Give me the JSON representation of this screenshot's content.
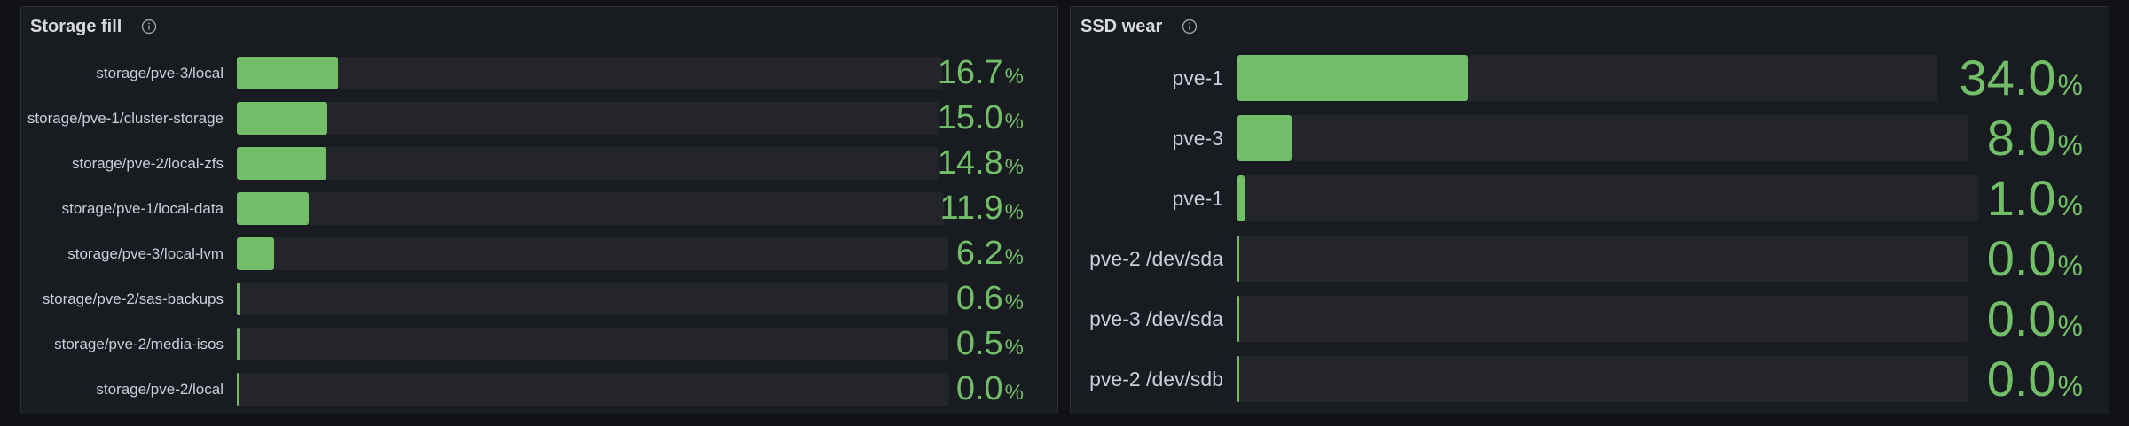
{
  "colors": {
    "accent": "#73bf69",
    "track": "#23252b",
    "panel": "#181b1f",
    "background": "#111217"
  },
  "panels": [
    {
      "title": "Storage fill",
      "icon": "info-icon",
      "rows": [
        {
          "label": "storage/pve-3/local",
          "value": "16.7",
          "unit": "%",
          "fraction": 0.167
        },
        {
          "label": "storage/pve-1/cluster-storage",
          "value": "15.0",
          "unit": "%",
          "fraction": 0.15
        },
        {
          "label": "storage/pve-2/local-zfs",
          "value": "14.8",
          "unit": "%",
          "fraction": 0.148
        },
        {
          "label": "storage/pve-1/local-data",
          "value": "11.9",
          "unit": "%",
          "fraction": 0.119
        },
        {
          "label": "storage/pve-3/local-lvm",
          "value": "6.2",
          "unit": "%",
          "fraction": 0.062
        },
        {
          "label": "storage/pve-2/sas-backups",
          "value": "0.6",
          "unit": "%",
          "fraction": 0.006
        },
        {
          "label": "storage/pve-2/media-isos",
          "value": "0.5",
          "unit": "%",
          "fraction": 0.005
        },
        {
          "label": "storage/pve-2/local",
          "value": "0.0",
          "unit": "%",
          "fraction": 0.0
        }
      ]
    },
    {
      "title": "SSD wear",
      "icon": "info-icon",
      "rows": [
        {
          "label": "pve-1",
          "value": "34.0",
          "unit": "%",
          "fraction": 0.34
        },
        {
          "label": "pve-3",
          "value": "8.0",
          "unit": "%",
          "fraction": 0.08
        },
        {
          "label": "pve-1",
          "value": "1.0",
          "unit": "%",
          "fraction": 0.01
        },
        {
          "label": "pve-2 /dev/sda",
          "value": "0.0",
          "unit": "%",
          "fraction": 0.0
        },
        {
          "label": "pve-3 /dev/sda",
          "value": "0.0",
          "unit": "%",
          "fraction": 0.0
        },
        {
          "label": "pve-2 /dev/sdb",
          "value": "0.0",
          "unit": "%",
          "fraction": 0.0
        }
      ]
    }
  ]
}
